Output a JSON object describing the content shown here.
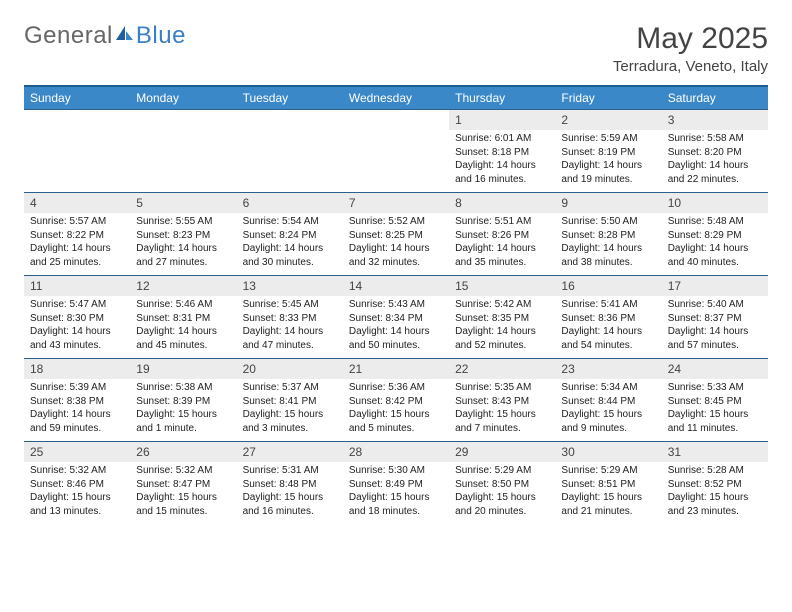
{
  "logo": {
    "text1": "General",
    "text2": "Blue"
  },
  "title": {
    "month": "May 2025",
    "location": "Terradura, Veneto, Italy"
  },
  "dow": [
    "Sunday",
    "Monday",
    "Tuesday",
    "Wednesday",
    "Thursday",
    "Friday",
    "Saturday"
  ],
  "colors": {
    "header_bg": "#3b88c9",
    "border": "#2a5f8e",
    "daynum_bg": "#ececec",
    "logo_blue": "#3b7fc4",
    "text": "#222222"
  },
  "weeks": [
    [
      null,
      null,
      null,
      null,
      {
        "n": "1",
        "sr": "Sunrise: 6:01 AM",
        "ss": "Sunset: 8:18 PM",
        "d1": "Daylight: 14 hours",
        "d2": "and 16 minutes."
      },
      {
        "n": "2",
        "sr": "Sunrise: 5:59 AM",
        "ss": "Sunset: 8:19 PM",
        "d1": "Daylight: 14 hours",
        "d2": "and 19 minutes."
      },
      {
        "n": "3",
        "sr": "Sunrise: 5:58 AM",
        "ss": "Sunset: 8:20 PM",
        "d1": "Daylight: 14 hours",
        "d2": "and 22 minutes."
      }
    ],
    [
      {
        "n": "4",
        "sr": "Sunrise: 5:57 AM",
        "ss": "Sunset: 8:22 PM",
        "d1": "Daylight: 14 hours",
        "d2": "and 25 minutes."
      },
      {
        "n": "5",
        "sr": "Sunrise: 5:55 AM",
        "ss": "Sunset: 8:23 PM",
        "d1": "Daylight: 14 hours",
        "d2": "and 27 minutes."
      },
      {
        "n": "6",
        "sr": "Sunrise: 5:54 AM",
        "ss": "Sunset: 8:24 PM",
        "d1": "Daylight: 14 hours",
        "d2": "and 30 minutes."
      },
      {
        "n": "7",
        "sr": "Sunrise: 5:52 AM",
        "ss": "Sunset: 8:25 PM",
        "d1": "Daylight: 14 hours",
        "d2": "and 32 minutes."
      },
      {
        "n": "8",
        "sr": "Sunrise: 5:51 AM",
        "ss": "Sunset: 8:26 PM",
        "d1": "Daylight: 14 hours",
        "d2": "and 35 minutes."
      },
      {
        "n": "9",
        "sr": "Sunrise: 5:50 AM",
        "ss": "Sunset: 8:28 PM",
        "d1": "Daylight: 14 hours",
        "d2": "and 38 minutes."
      },
      {
        "n": "10",
        "sr": "Sunrise: 5:48 AM",
        "ss": "Sunset: 8:29 PM",
        "d1": "Daylight: 14 hours",
        "d2": "and 40 minutes."
      }
    ],
    [
      {
        "n": "11",
        "sr": "Sunrise: 5:47 AM",
        "ss": "Sunset: 8:30 PM",
        "d1": "Daylight: 14 hours",
        "d2": "and 43 minutes."
      },
      {
        "n": "12",
        "sr": "Sunrise: 5:46 AM",
        "ss": "Sunset: 8:31 PM",
        "d1": "Daylight: 14 hours",
        "d2": "and 45 minutes."
      },
      {
        "n": "13",
        "sr": "Sunrise: 5:45 AM",
        "ss": "Sunset: 8:33 PM",
        "d1": "Daylight: 14 hours",
        "d2": "and 47 minutes."
      },
      {
        "n": "14",
        "sr": "Sunrise: 5:43 AM",
        "ss": "Sunset: 8:34 PM",
        "d1": "Daylight: 14 hours",
        "d2": "and 50 minutes."
      },
      {
        "n": "15",
        "sr": "Sunrise: 5:42 AM",
        "ss": "Sunset: 8:35 PM",
        "d1": "Daylight: 14 hours",
        "d2": "and 52 minutes."
      },
      {
        "n": "16",
        "sr": "Sunrise: 5:41 AM",
        "ss": "Sunset: 8:36 PM",
        "d1": "Daylight: 14 hours",
        "d2": "and 54 minutes."
      },
      {
        "n": "17",
        "sr": "Sunrise: 5:40 AM",
        "ss": "Sunset: 8:37 PM",
        "d1": "Daylight: 14 hours",
        "d2": "and 57 minutes."
      }
    ],
    [
      {
        "n": "18",
        "sr": "Sunrise: 5:39 AM",
        "ss": "Sunset: 8:38 PM",
        "d1": "Daylight: 14 hours",
        "d2": "and 59 minutes."
      },
      {
        "n": "19",
        "sr": "Sunrise: 5:38 AM",
        "ss": "Sunset: 8:39 PM",
        "d1": "Daylight: 15 hours",
        "d2": "and 1 minute."
      },
      {
        "n": "20",
        "sr": "Sunrise: 5:37 AM",
        "ss": "Sunset: 8:41 PM",
        "d1": "Daylight: 15 hours",
        "d2": "and 3 minutes."
      },
      {
        "n": "21",
        "sr": "Sunrise: 5:36 AM",
        "ss": "Sunset: 8:42 PM",
        "d1": "Daylight: 15 hours",
        "d2": "and 5 minutes."
      },
      {
        "n": "22",
        "sr": "Sunrise: 5:35 AM",
        "ss": "Sunset: 8:43 PM",
        "d1": "Daylight: 15 hours",
        "d2": "and 7 minutes."
      },
      {
        "n": "23",
        "sr": "Sunrise: 5:34 AM",
        "ss": "Sunset: 8:44 PM",
        "d1": "Daylight: 15 hours",
        "d2": "and 9 minutes."
      },
      {
        "n": "24",
        "sr": "Sunrise: 5:33 AM",
        "ss": "Sunset: 8:45 PM",
        "d1": "Daylight: 15 hours",
        "d2": "and 11 minutes."
      }
    ],
    [
      {
        "n": "25",
        "sr": "Sunrise: 5:32 AM",
        "ss": "Sunset: 8:46 PM",
        "d1": "Daylight: 15 hours",
        "d2": "and 13 minutes."
      },
      {
        "n": "26",
        "sr": "Sunrise: 5:32 AM",
        "ss": "Sunset: 8:47 PM",
        "d1": "Daylight: 15 hours",
        "d2": "and 15 minutes."
      },
      {
        "n": "27",
        "sr": "Sunrise: 5:31 AM",
        "ss": "Sunset: 8:48 PM",
        "d1": "Daylight: 15 hours",
        "d2": "and 16 minutes."
      },
      {
        "n": "28",
        "sr": "Sunrise: 5:30 AM",
        "ss": "Sunset: 8:49 PM",
        "d1": "Daylight: 15 hours",
        "d2": "and 18 minutes."
      },
      {
        "n": "29",
        "sr": "Sunrise: 5:29 AM",
        "ss": "Sunset: 8:50 PM",
        "d1": "Daylight: 15 hours",
        "d2": "and 20 minutes."
      },
      {
        "n": "30",
        "sr": "Sunrise: 5:29 AM",
        "ss": "Sunset: 8:51 PM",
        "d1": "Daylight: 15 hours",
        "d2": "and 21 minutes."
      },
      {
        "n": "31",
        "sr": "Sunrise: 5:28 AM",
        "ss": "Sunset: 8:52 PM",
        "d1": "Daylight: 15 hours",
        "d2": "and 23 minutes."
      }
    ]
  ]
}
